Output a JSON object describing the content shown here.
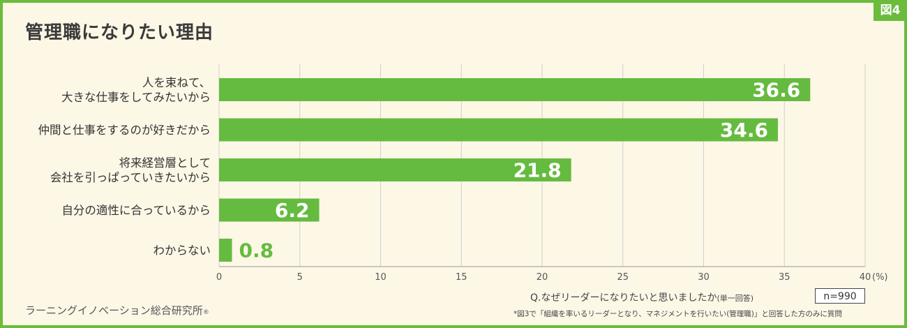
{
  "figure_tag": "図4",
  "title": "管理職になりたい理由",
  "chart_data": {
    "type": "bar",
    "orientation": "horizontal",
    "categories": [
      [
        "人を束ねて、",
        "大きな仕事をしてみたいから"
      ],
      [
        "仲間と仕事をするのが好きだから"
      ],
      [
        "将来経営層として",
        "会社を引っぱっていきたいから"
      ],
      [
        "自分の適性に合っているから"
      ],
      [
        "わからない"
      ]
    ],
    "values": [
      36.6,
      34.6,
      21.8,
      6.2,
      0.8
    ],
    "value_labels": [
      "36.6",
      "34.6",
      "21.8",
      "6.2",
      "0.8"
    ],
    "xlim": [
      0,
      40
    ],
    "x_ticks": [
      "0",
      "5",
      "10",
      "15",
      "20",
      "25",
      "30",
      "35",
      "40"
    ],
    "x_unit": "(%)",
    "grid": true,
    "bar_color": "#65bb3f"
  },
  "question": "Q.なぜリーダーになりたいと思いましたか",
  "question_note": "(単一回答)",
  "sample_size": "n=990",
  "source": "ラーニングイノベーション総合研究所",
  "source_mark": "®",
  "footnote": "*図3で「組織を率いるリーダーとなり、マネジメントを行いたい(管理職)」と回答した方のみに質問"
}
